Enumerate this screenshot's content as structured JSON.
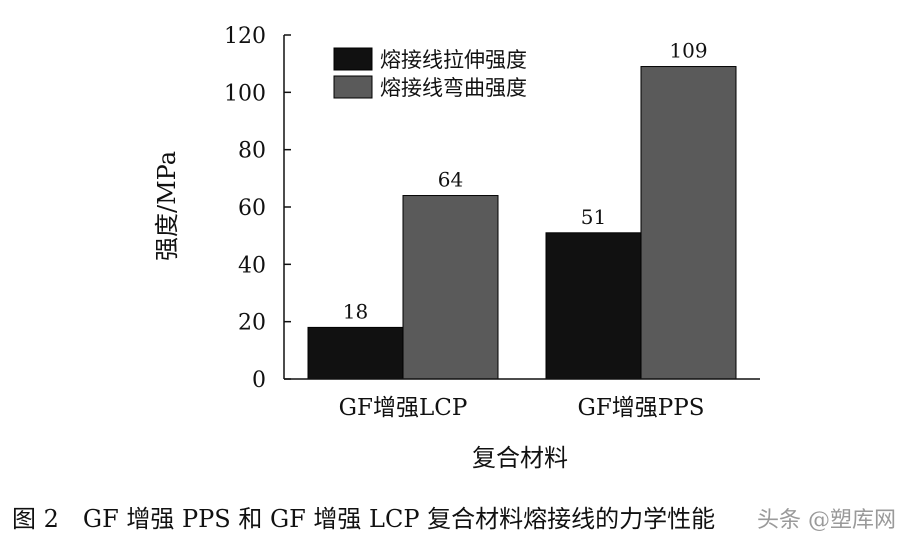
{
  "chart_data": {
    "type": "bar",
    "categories": [
      "GF增强LCP",
      "GF增强PPS"
    ],
    "series": [
      {
        "name": "熔接线拉伸强度",
        "values": [
          18,
          51
        ],
        "color": "#111111"
      },
      {
        "name": "熔接线弯曲强度",
        "values": [
          64,
          109
        ],
        "color": "#5a5a5a"
      }
    ],
    "value_labels": [
      [
        "18",
        "51"
      ],
      [
        "64",
        "109"
      ]
    ],
    "ylim": [
      0,
      120
    ],
    "yticks": [
      0,
      20,
      40,
      60,
      80,
      100,
      120
    ],
    "ylabel": "强度/MPa",
    "xlabel": "复合材料",
    "legend_position": "top-left",
    "grid": false
  },
  "caption": "图 2　GF 增强 PPS 和 GF 增强 LCP 复合材料熔接线的力学性能",
  "watermark": "头条 @塑库网"
}
